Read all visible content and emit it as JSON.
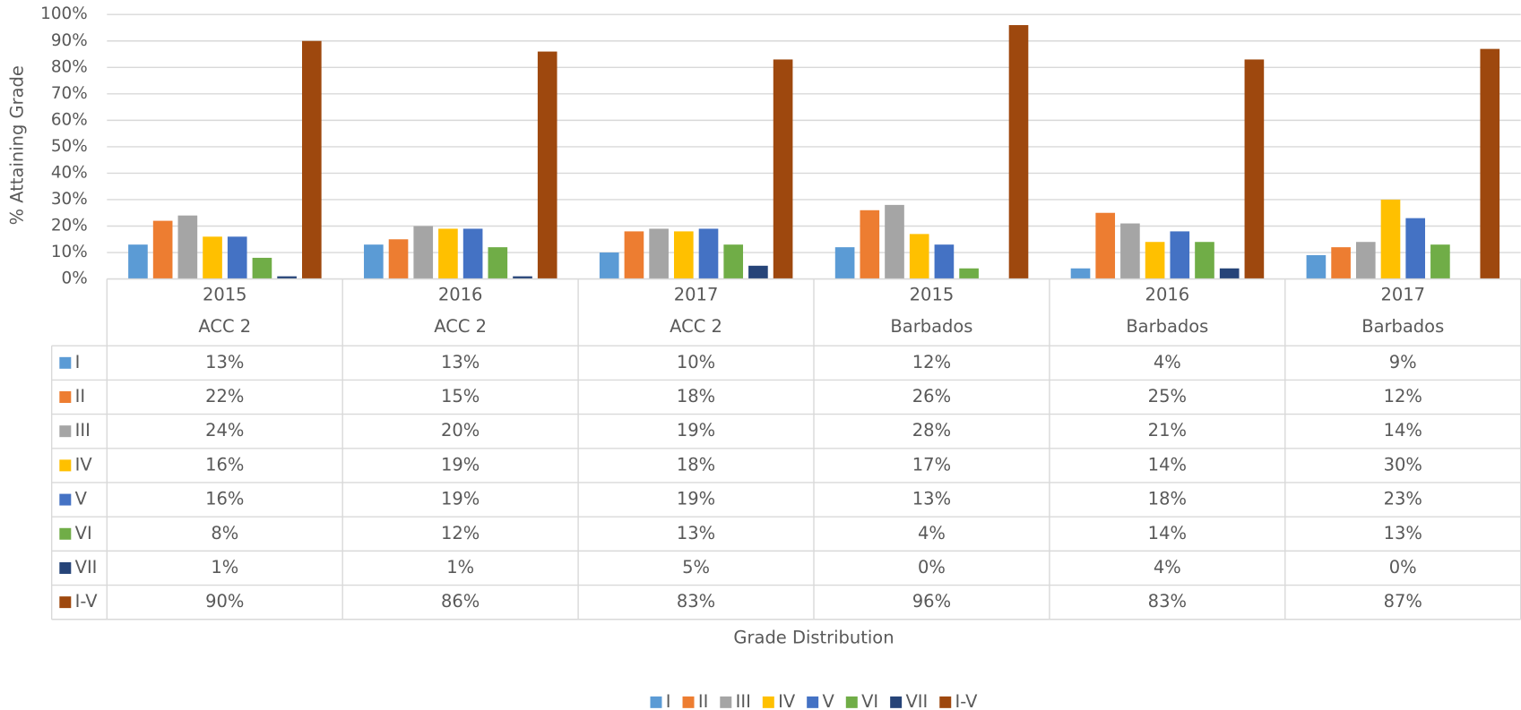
{
  "chart_data": {
    "type": "bar",
    "y_axis_label": "% Attaining Grade",
    "x_axis_label": "Grade Distribution",
    "categories": [
      "2015",
      "2016",
      "2017",
      "2015",
      "2016",
      "2017"
    ],
    "groups": [
      "ACC 2",
      "ACC 2",
      "ACC 2",
      "Barbados",
      "Barbados",
      "Barbados"
    ],
    "series": [
      {
        "name": "I",
        "color": "#5b9bd5",
        "values": [
          13,
          13,
          10,
          12,
          4,
          9
        ],
        "value_labels": [
          "13%",
          "13%",
          "10%",
          "12%",
          "4%",
          "9%"
        ]
      },
      {
        "name": "II",
        "color": "#ed7d31",
        "values": [
          22,
          15,
          18,
          26,
          25,
          12
        ],
        "value_labels": [
          "22%",
          "15%",
          "18%",
          "26%",
          "25%",
          "12%"
        ]
      },
      {
        "name": "III",
        "color": "#a5a5a5",
        "values": [
          24,
          20,
          19,
          28,
          21,
          14
        ],
        "value_labels": [
          "24%",
          "20%",
          "19%",
          "28%",
          "21%",
          "14%"
        ]
      },
      {
        "name": "IV",
        "color": "#ffc000",
        "values": [
          16,
          19,
          18,
          17,
          14,
          30
        ],
        "value_labels": [
          "16%",
          "19%",
          "18%",
          "17%",
          "14%",
          "30%"
        ]
      },
      {
        "name": "V",
        "color": "#4472c4",
        "values": [
          16,
          19,
          19,
          13,
          18,
          23
        ],
        "value_labels": [
          "16%",
          "19%",
          "19%",
          "13%",
          "18%",
          "23%"
        ]
      },
      {
        "name": "VI",
        "color": "#70ad47",
        "values": [
          8,
          12,
          13,
          4,
          14,
          13
        ],
        "value_labels": [
          "8%",
          "12%",
          "13%",
          "4%",
          "14%",
          "13%"
        ]
      },
      {
        "name": "VII",
        "color": "#264478",
        "values": [
          1,
          1,
          5,
          0,
          4,
          0
        ],
        "value_labels": [
          "1%",
          "1%",
          "5%",
          "0%",
          "4%",
          "0%"
        ]
      },
      {
        "name": "I-V",
        "color": "#9e480e",
        "values": [
          90,
          86,
          83,
          96,
          83,
          87
        ],
        "value_labels": [
          "90%",
          "86%",
          "83%",
          "96%",
          "83%",
          "87%"
        ]
      }
    ],
    "ylim": [
      0,
      100
    ],
    "yticks": [
      {
        "value": 0,
        "label": "0%"
      },
      {
        "value": 10,
        "label": "10%"
      },
      {
        "value": 20,
        "label": "20%"
      },
      {
        "value": 30,
        "label": "30%"
      },
      {
        "value": 40,
        "label": "40%"
      },
      {
        "value": 50,
        "label": "50%"
      },
      {
        "value": 60,
        "label": "60%"
      },
      {
        "value": 70,
        "label": "70%"
      },
      {
        "value": 80,
        "label": "80%"
      },
      {
        "value": 90,
        "label": "90%"
      },
      {
        "value": 100,
        "label": "100%"
      }
    ],
    "grid": true,
    "legend": "bottom"
  }
}
